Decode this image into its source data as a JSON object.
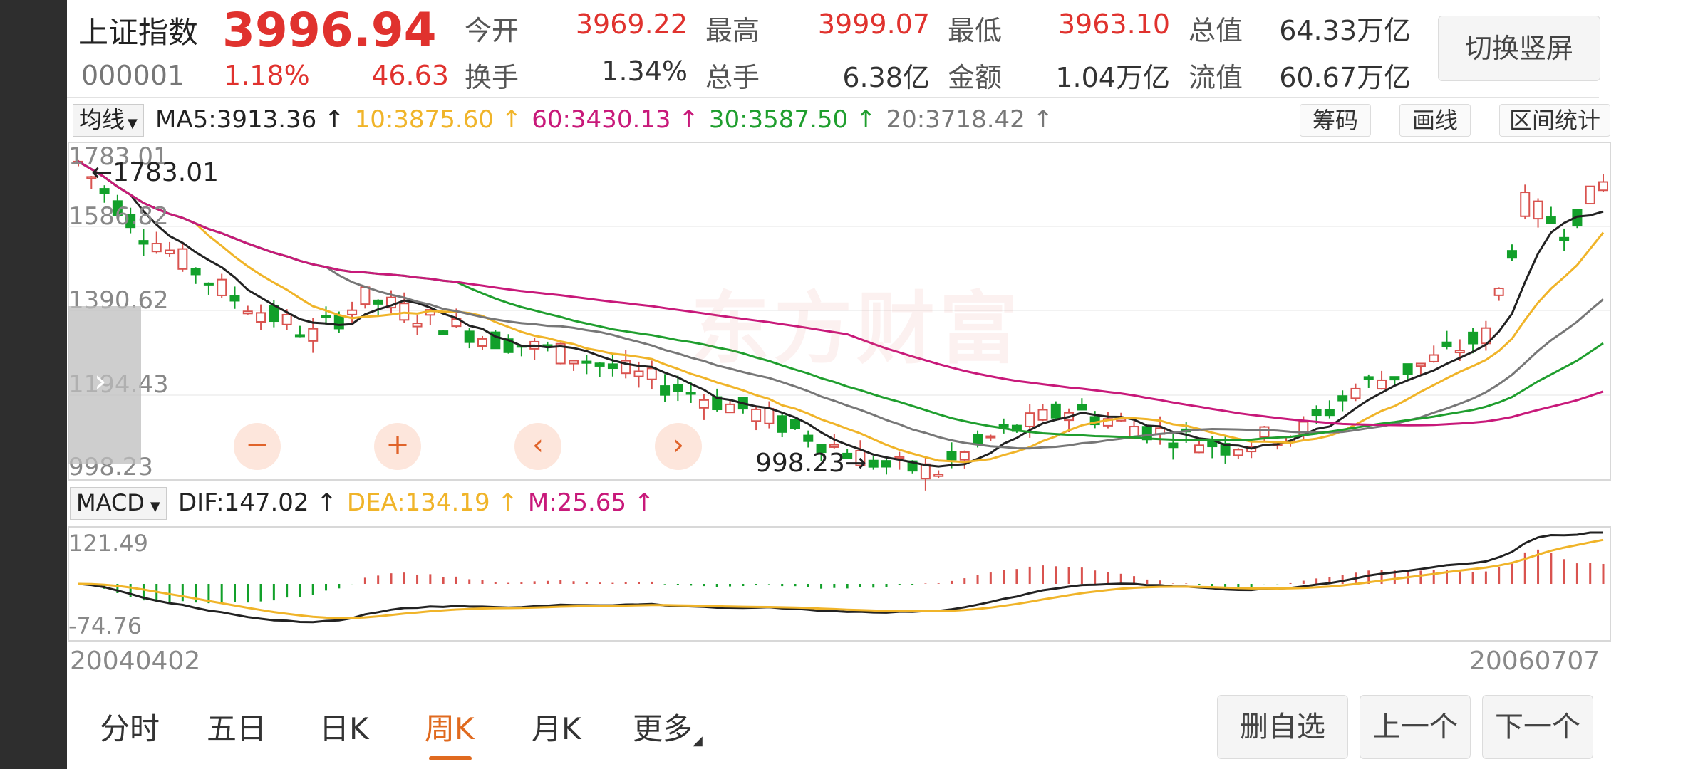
{
  "header": {
    "index_name": "上证指数",
    "price": "3996.94",
    "code": "000001",
    "change_pct": "1.18%",
    "change_pts": "46.63",
    "stats": [
      {
        "label": "今开",
        "value": "3969.22",
        "color": "#e0322e"
      },
      {
        "label": "最高",
        "value": "3999.07",
        "color": "#e0322e"
      },
      {
        "label": "最低",
        "value": "3963.10",
        "color": "#e0322e"
      },
      {
        "label": "总值",
        "value": "64.33万亿",
        "color": "#333333"
      },
      {
        "label": "换手",
        "value": "1.34%",
        "color": "#333333"
      },
      {
        "label": "总手",
        "value": "6.38亿",
        "color": "#333333"
      },
      {
        "label": "金额",
        "value": "1.04万亿",
        "color": "#333333"
      },
      {
        "label": "流值",
        "value": "60.67万亿",
        "color": "#333333"
      }
    ],
    "switch_button": "切换竖屏"
  },
  "ma_bar": {
    "selector": "均线",
    "items": [
      {
        "text": "MA5:3913.36 ↑",
        "color": "#222222"
      },
      {
        "text": "10:3875.60 ↑",
        "color": "#f0b429"
      },
      {
        "text": "60:3430.13 ↑",
        "color": "#c8197a"
      },
      {
        "text": "30:3587.50 ↑",
        "color": "#1f9e2e"
      },
      {
        "text": "20:3718.42 ↑",
        "color": "#777777"
      }
    ],
    "buttons": [
      "筹码",
      "画线",
      "区间统计"
    ]
  },
  "kline": {
    "y_labels": [
      "1783.01",
      "1586.82",
      "1390.62",
      "1194.43",
      "998.23"
    ],
    "high_marker": "←1783.01",
    "low_marker": "998.23→",
    "watermark": "东方财富",
    "ymax": 1783.01,
    "ymin": 998.23
  },
  "macd_bar": {
    "selector": "MACD",
    "items": [
      {
        "text": "DIF:147.02 ↑",
        "color": "#222222"
      },
      {
        "text": "DEA:134.19 ↑",
        "color": "#f0b429"
      },
      {
        "text": "M:25.65 ↑",
        "color": "#c8197a"
      }
    ]
  },
  "macd": {
    "y_labels": [
      "121.49",
      "-74.76"
    ]
  },
  "x_axis": {
    "start": "20040402",
    "end": "20060707"
  },
  "tabs": [
    {
      "label": "分时",
      "active": false
    },
    {
      "label": "五日",
      "active": false
    },
    {
      "label": "日K",
      "active": false
    },
    {
      "label": "周K",
      "active": true
    },
    {
      "label": "月K",
      "active": false
    },
    {
      "label": "更多",
      "active": false
    }
  ],
  "bottom_buttons": [
    "删自选",
    "上一个",
    "下一个"
  ],
  "controls": [
    "−",
    "+",
    "‹",
    "›"
  ]
}
